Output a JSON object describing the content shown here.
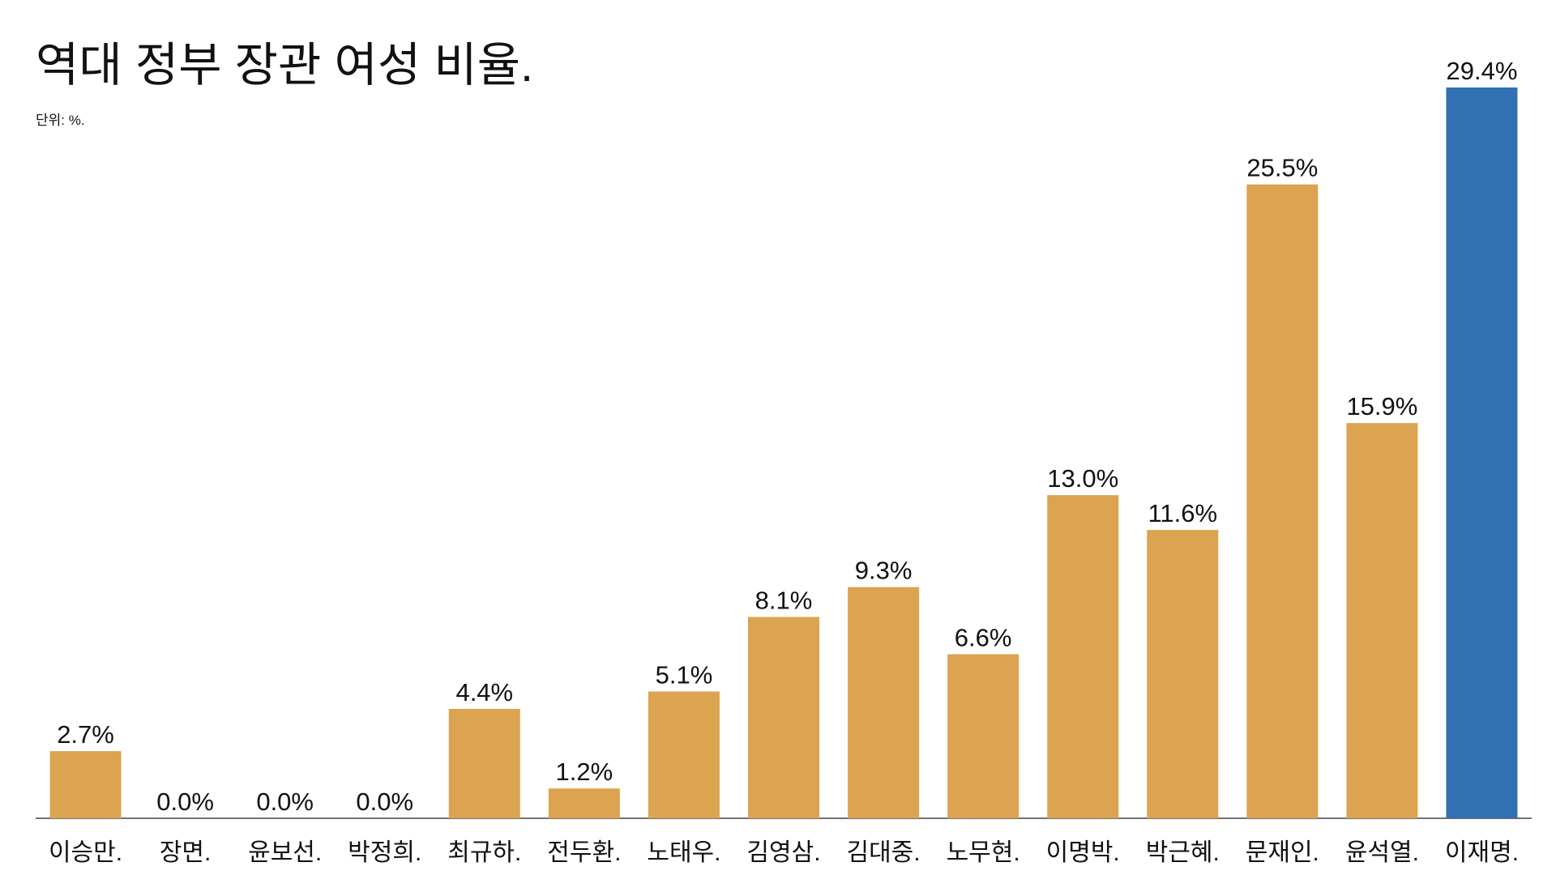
{
  "chart_data": {
    "type": "bar",
    "title": "역대 정부 장관 여성 비율.",
    "subtitle": "단위: %.",
    "categories": [
      "이승만.",
      "장면.",
      "윤보선.",
      "박정희.",
      "최규하.",
      "전두환.",
      "노태우.",
      "김영삼.",
      "김대중.",
      "노무현.",
      "이명박.",
      "박근혜.",
      "문재인.",
      "윤석열.",
      "이재명."
    ],
    "values": [
      2.7,
      0.0,
      0.0,
      0.0,
      4.4,
      1.2,
      5.1,
      8.1,
      9.3,
      6.6,
      13.0,
      11.6,
      25.5,
      15.9,
      29.4
    ],
    "value_labels": [
      "2.7%",
      "0.0%",
      "0.0%",
      "0.0%",
      "4.4%",
      "1.2%",
      "5.1%",
      "8.1%",
      "9.3%",
      "6.6%",
      "13.0%",
      "11.6%",
      "25.5%",
      "15.9%",
      "29.4%"
    ],
    "colors": [
      "#dca450",
      "#dca450",
      "#dca450",
      "#dca450",
      "#dca450",
      "#dca450",
      "#dca450",
      "#dca450",
      "#dca450",
      "#dca450",
      "#dca450",
      "#dca450",
      "#dca450",
      "#dca450",
      "#3171b3"
    ]
  }
}
